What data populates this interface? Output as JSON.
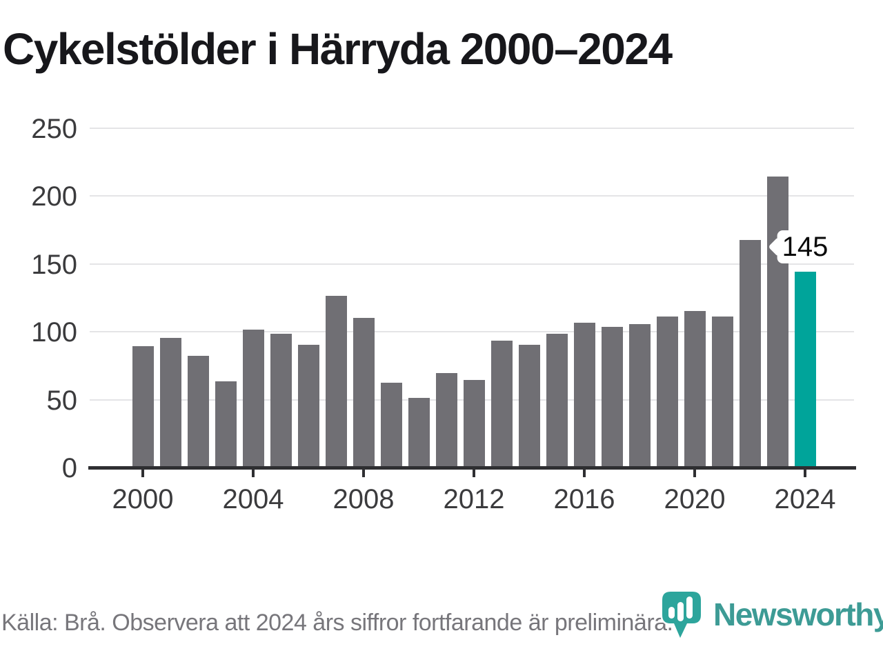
{
  "title": "Cykelstölder i Härryda 2000–2024",
  "chart_data": {
    "type": "bar",
    "title": "Cykelstölder i Härryda 2000–2024",
    "categories": [
      2000,
      2001,
      2002,
      2003,
      2004,
      2005,
      2006,
      2007,
      2008,
      2009,
      2010,
      2011,
      2012,
      2013,
      2014,
      2015,
      2016,
      2017,
      2018,
      2019,
      2020,
      2021,
      2022,
      2023,
      2024
    ],
    "values": [
      90,
      96,
      83,
      64,
      102,
      99,
      91,
      127,
      111,
      63,
      52,
      70,
      65,
      94,
      91,
      99,
      107,
      104,
      106,
      112,
      116,
      112,
      168,
      215,
      145
    ],
    "ylim": [
      0,
      250
    ],
    "y_ticks": [
      0,
      50,
      100,
      150,
      200,
      250
    ],
    "x_tick_years": [
      2000,
      2004,
      2008,
      2012,
      2016,
      2020,
      2024
    ],
    "grid": "horizontal",
    "legend": "none",
    "bar_color": "#706f74",
    "gridline_color": "#e4e4e6",
    "highlight": {
      "year": 2024,
      "value": 145,
      "label": "145",
      "color": "#00a49a"
    }
  },
  "footer": {
    "source_note": "Källa: Brå. Observera att 2024 års siffror fortfarande är preliminära."
  },
  "logo": {
    "text": "Newsworthy",
    "text_color": "#3d9b95",
    "icon_color": "#2da59c"
  }
}
